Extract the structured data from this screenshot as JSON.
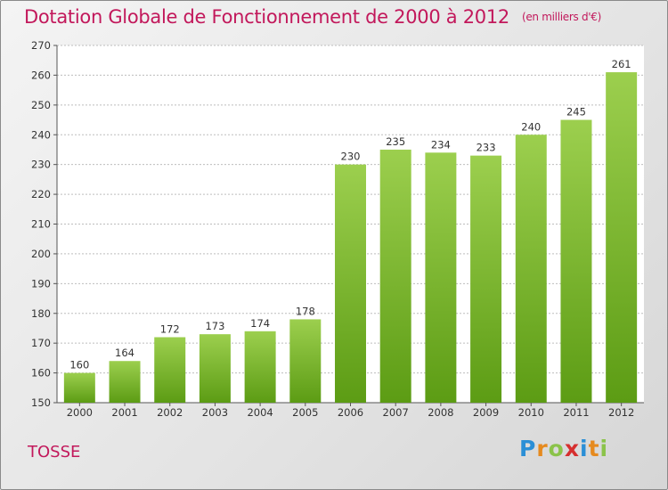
{
  "header": {
    "title": "Dotation Globale de Fonctionnement de 2000 à 2012",
    "unit": "(en milliers d'€)"
  },
  "commune": "TOSSE",
  "logo": {
    "letters": [
      "P",
      "r",
      "o",
      "x",
      "i",
      "t",
      "i"
    ],
    "colors": [
      "#2b8fd6",
      "#e68a1e",
      "#8bc34a",
      "#d62f2f",
      "#2b8fd6",
      "#e68a1e",
      "#8bc34a"
    ]
  },
  "chart_data": {
    "type": "bar",
    "categories": [
      "2000",
      "2001",
      "2002",
      "2003",
      "2004",
      "2005",
      "2006",
      "2007",
      "2008",
      "2009",
      "2010",
      "2011",
      "2012"
    ],
    "values": [
      160,
      164,
      172,
      173,
      174,
      178,
      230,
      235,
      234,
      233,
      240,
      245,
      261
    ],
    "ylim": [
      150,
      270
    ],
    "yticks": [
      150,
      160,
      170,
      180,
      190,
      200,
      210,
      220,
      230,
      240,
      250,
      260,
      270
    ],
    "grid": true,
    "colors": {
      "bar_top": "#9ccf4e",
      "bar_bottom": "#5c9c14",
      "grid": "#bdbdbd"
    }
  }
}
